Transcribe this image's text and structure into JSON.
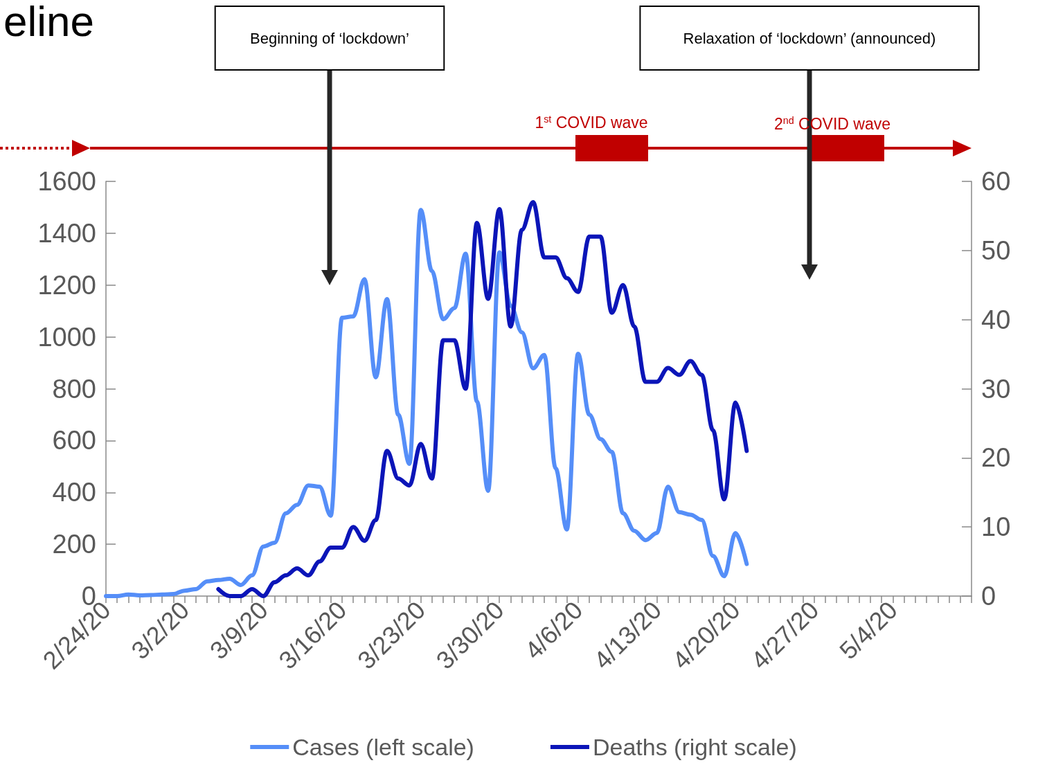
{
  "chart_data": {
    "type": "line",
    "title": "eline",
    "x": [
      "--02-24",
      "--02-25",
      "--02-26",
      "--02-27",
      "--02-28",
      "--02-29",
      "--03-01",
      "--03-02",
      "--03-03",
      "--03-04",
      "--03-05",
      "--03-06",
      "--03-07",
      "--03-08",
      "--03-09",
      "--03-10",
      "--03-11",
      "--03-12",
      "--03-13",
      "--03-14",
      "--03-15",
      "--03-16",
      "--03-17",
      "--03-18",
      "--03-19",
      "--03-20",
      "--03-21",
      "--03-22",
      "--03-23",
      "--03-24",
      "--03-25",
      "--03-26",
      "--03-27",
      "--03-28",
      "--03-29",
      "--03-30",
      "--03-31",
      "--04-01",
      "--04-02",
      "--04-03",
      "--04-04",
      "--04-05",
      "--04-06",
      "--04-07",
      "--04-08",
      "--04-09",
      "--04-10",
      "--04-11",
      "--04-12",
      "--04-13",
      "--04-14",
      "--04-15",
      "--04-16",
      "--04-17",
      "--04-18",
      "--04-19",
      "--04-20",
      "--04-21"
    ],
    "series": [
      {
        "name": "Cases (left scale)",
        "color": "#558ef8",
        "values": [
          0,
          0,
          6,
          3,
          4,
          6,
          8,
          21,
          27,
          57,
          62,
          67,
          43,
          80,
          191,
          206,
          319,
          352,
          427,
          422,
          310,
          1074,
          1079,
          1223,
          844,
          1146,
          700,
          510,
          1490,
          1254,
          1068,
          1111,
          1321,
          751,
          406,
          1326,
          1120,
          1018,
          879,
          930,
          493,
          257,
          935,
          700,
          606,
          556,
          319,
          252,
          216,
          243,
          422,
          324,
          314,
          294,
          155,
          77,
          243,
          124
        ]
      },
      {
        "name": "Deaths (right scale)",
        "color": "#0b15b8",
        "axis": "y2",
        "values": [
          null,
          null,
          null,
          null,
          null,
          null,
          null,
          null,
          null,
          null,
          1,
          0,
          0,
          1,
          0,
          2,
          3,
          4,
          3,
          5,
          7,
          7,
          10,
          8,
          11,
          21,
          17,
          16,
          22,
          17,
          37,
          37,
          30,
          54,
          43,
          56,
          39,
          53,
          57,
          49,
          49,
          46,
          44,
          52,
          52,
          41,
          45,
          39,
          31,
          31,
          33,
          32,
          34,
          32,
          24,
          14,
          28,
          21
        ]
      }
    ],
    "xlim": [
      "--02-24",
      "--05-11"
    ],
    "xticks": [
      {
        "value": "--02-24",
        "label": "2/24/20"
      },
      {
        "value": "--02-25",
        "label": null
      },
      {
        "value": "--02-26",
        "label": null
      },
      {
        "value": "--02-27",
        "label": null
      },
      {
        "value": "--02-28",
        "label": null
      },
      {
        "value": "--02-29",
        "label": null
      },
      {
        "value": "--03-01",
        "label": null
      },
      {
        "value": "--03-02",
        "label": "3/2/20"
      },
      {
        "value": "--03-03",
        "label": null
      },
      {
        "value": "--03-04",
        "label": null
      },
      {
        "value": "--03-05",
        "label": null
      },
      {
        "value": "--03-06",
        "label": null
      },
      {
        "value": "--03-07",
        "label": null
      },
      {
        "value": "--03-08",
        "label": null
      },
      {
        "value": "--03-09",
        "label": "3/9/20"
      },
      {
        "value": "--03-10",
        "label": null
      },
      {
        "value": "--03-11",
        "label": null
      },
      {
        "value": "--03-12",
        "label": null
      },
      {
        "value": "--03-13",
        "label": null
      },
      {
        "value": "--03-14",
        "label": null
      },
      {
        "value": "--03-15",
        "label": null
      },
      {
        "value": "--03-16",
        "label": "3/16/20"
      },
      {
        "value": "--03-17",
        "label": null
      },
      {
        "value": "--03-18",
        "label": null
      },
      {
        "value": "--03-19",
        "label": null
      },
      {
        "value": "--03-20",
        "label": null
      },
      {
        "value": "--03-21",
        "label": null
      },
      {
        "value": "--03-22",
        "label": null
      },
      {
        "value": "--03-23",
        "label": "3/23/20"
      },
      {
        "value": "--03-24",
        "label": null
      },
      {
        "value": "--03-25",
        "label": null
      },
      {
        "value": "--03-26",
        "label": null
      },
      {
        "value": "--03-27",
        "label": null
      },
      {
        "value": "--03-28",
        "label": null
      },
      {
        "value": "--03-29",
        "label": null
      },
      {
        "value": "--03-30",
        "label": "3/30/20"
      },
      {
        "value": "--03-31",
        "label": null
      },
      {
        "value": "--04-01",
        "label": null
      },
      {
        "value": "--04-02",
        "label": null
      },
      {
        "value": "--04-03",
        "label": null
      },
      {
        "value": "--04-04",
        "label": null
      },
      {
        "value": "--04-05",
        "label": null
      },
      {
        "value": "--04-06",
        "label": "4/6/20"
      },
      {
        "value": "--04-07",
        "label": null
      },
      {
        "value": "--04-08",
        "label": null
      },
      {
        "value": "--04-09",
        "label": null
      },
      {
        "value": "--04-10",
        "label": null
      },
      {
        "value": "--04-11",
        "label": null
      },
      {
        "value": "--04-12",
        "label": null
      },
      {
        "value": "--04-13",
        "label": "4/13/20"
      },
      {
        "value": "--04-14",
        "label": null
      },
      {
        "value": "--04-15",
        "label": null
      },
      {
        "value": "--04-16",
        "label": null
      },
      {
        "value": "--04-17",
        "label": null
      },
      {
        "value": "--04-18",
        "label": null
      },
      {
        "value": "--04-19",
        "label": null
      },
      {
        "value": "--04-20",
        "label": "4/20/20"
      },
      {
        "value": "--04-21",
        "label": null
      },
      {
        "value": "--04-22",
        "label": null
      },
      {
        "value": "--04-23",
        "label": null
      },
      {
        "value": "--04-24",
        "label": null
      },
      {
        "value": "--04-25",
        "label": null
      },
      {
        "value": "--04-26",
        "label": null
      },
      {
        "value": "--04-27",
        "label": "4/27/20"
      },
      {
        "value": "--04-28",
        "label": null
      },
      {
        "value": "--04-29",
        "label": null
      },
      {
        "value": "--04-30",
        "label": null
      },
      {
        "value": "--05-01",
        "label": null
      },
      {
        "value": "--05-02",
        "label": null
      },
      {
        "value": "--05-03",
        "label": null
      },
      {
        "value": "--05-04",
        "label": "5/4/20"
      },
      {
        "value": "--05-05",
        "label": null
      },
      {
        "value": "--05-06",
        "label": null
      },
      {
        "value": "--05-07",
        "label": null
      },
      {
        "value": "--05-08",
        "label": null
      },
      {
        "value": "--05-09",
        "label": null
      },
      {
        "value": "--05-10",
        "label": null
      },
      {
        "value": "--05-11",
        "label": null
      }
    ],
    "ylim": [
      0,
      1600
    ],
    "yticks": [
      0,
      200,
      400,
      600,
      800,
      1000,
      1200,
      1400,
      1600
    ],
    "y2lim": [
      0,
      60
    ],
    "y2ticks": [
      0,
      10,
      20,
      30,
      40,
      50,
      60
    ],
    "annotations": [
      "Beginning of ‘lockdown’",
      "Relaxation of ‘lockdown’ (announced)",
      "1$^{st}$ COVID wave",
      "2$^{nd}$ COVID wave"
    ],
    "grid": false,
    "legend": "bottom",
    "marker": "none",
    "line_style": "solid"
  }
}
